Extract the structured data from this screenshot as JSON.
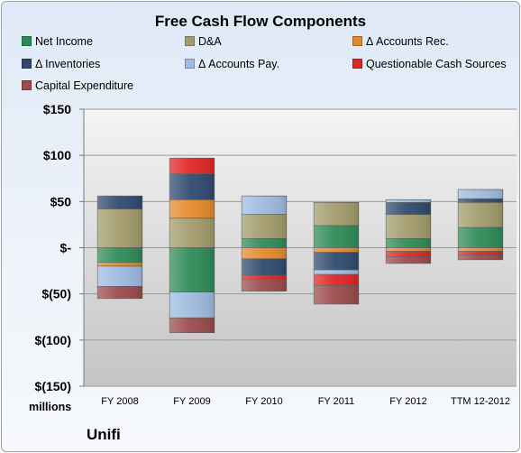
{
  "chart_data": {
    "type": "bar",
    "stacked": true,
    "title": "Free Cash Flow Components",
    "categories": [
      "FY 2008",
      "FY 2009",
      "FY 2010",
      "FY 2011",
      "FY 2012",
      "TTM 12-2012"
    ],
    "series": [
      {
        "name": "Net Income",
        "color": "#2e8b57",
        "values": [
          -16,
          -48,
          10,
          24,
          10,
          22
        ]
      },
      {
        "name": "D&A",
        "color": "#a39b6b",
        "values": [
          42,
          32,
          26,
          25,
          26,
          27
        ]
      },
      {
        "name": "Δ Accounts Rec.",
        "color": "#e58a2a",
        "values": [
          -4,
          20,
          -12,
          -5,
          -4,
          -4
        ]
      },
      {
        "name": "Δ Inventories",
        "color": "#2f4a6e",
        "values": [
          14,
          28,
          -18,
          -19,
          13,
          4
        ]
      },
      {
        "name": "Δ Accounts Pay.",
        "color": "#9ebbe0",
        "values": [
          -22,
          -28,
          20,
          -5,
          3,
          10
        ]
      },
      {
        "name": "Questionable Cash Sources",
        "color": "#e02424",
        "values": [
          0,
          17,
          -4,
          -12,
          -6,
          -4
        ]
      },
      {
        "name": "Capital Expenditure",
        "color": "#9a4a4a",
        "values": [
          -13,
          -16,
          -13,
          -20,
          -7,
          -5
        ]
      }
    ],
    "ylim": [
      -150,
      150
    ],
    "yticks": [
      150,
      100,
      50,
      0,
      -50,
      -100,
      -150
    ],
    "ytick_labels": [
      "$150",
      "$100",
      "$50",
      "$-",
      "$(50)",
      "$(100)",
      "$(150)"
    ],
    "ylabel": "",
    "xlabel": "",
    "grid": true,
    "legend_position": "top"
  },
  "units_label": "millions",
  "company": "Unifi"
}
